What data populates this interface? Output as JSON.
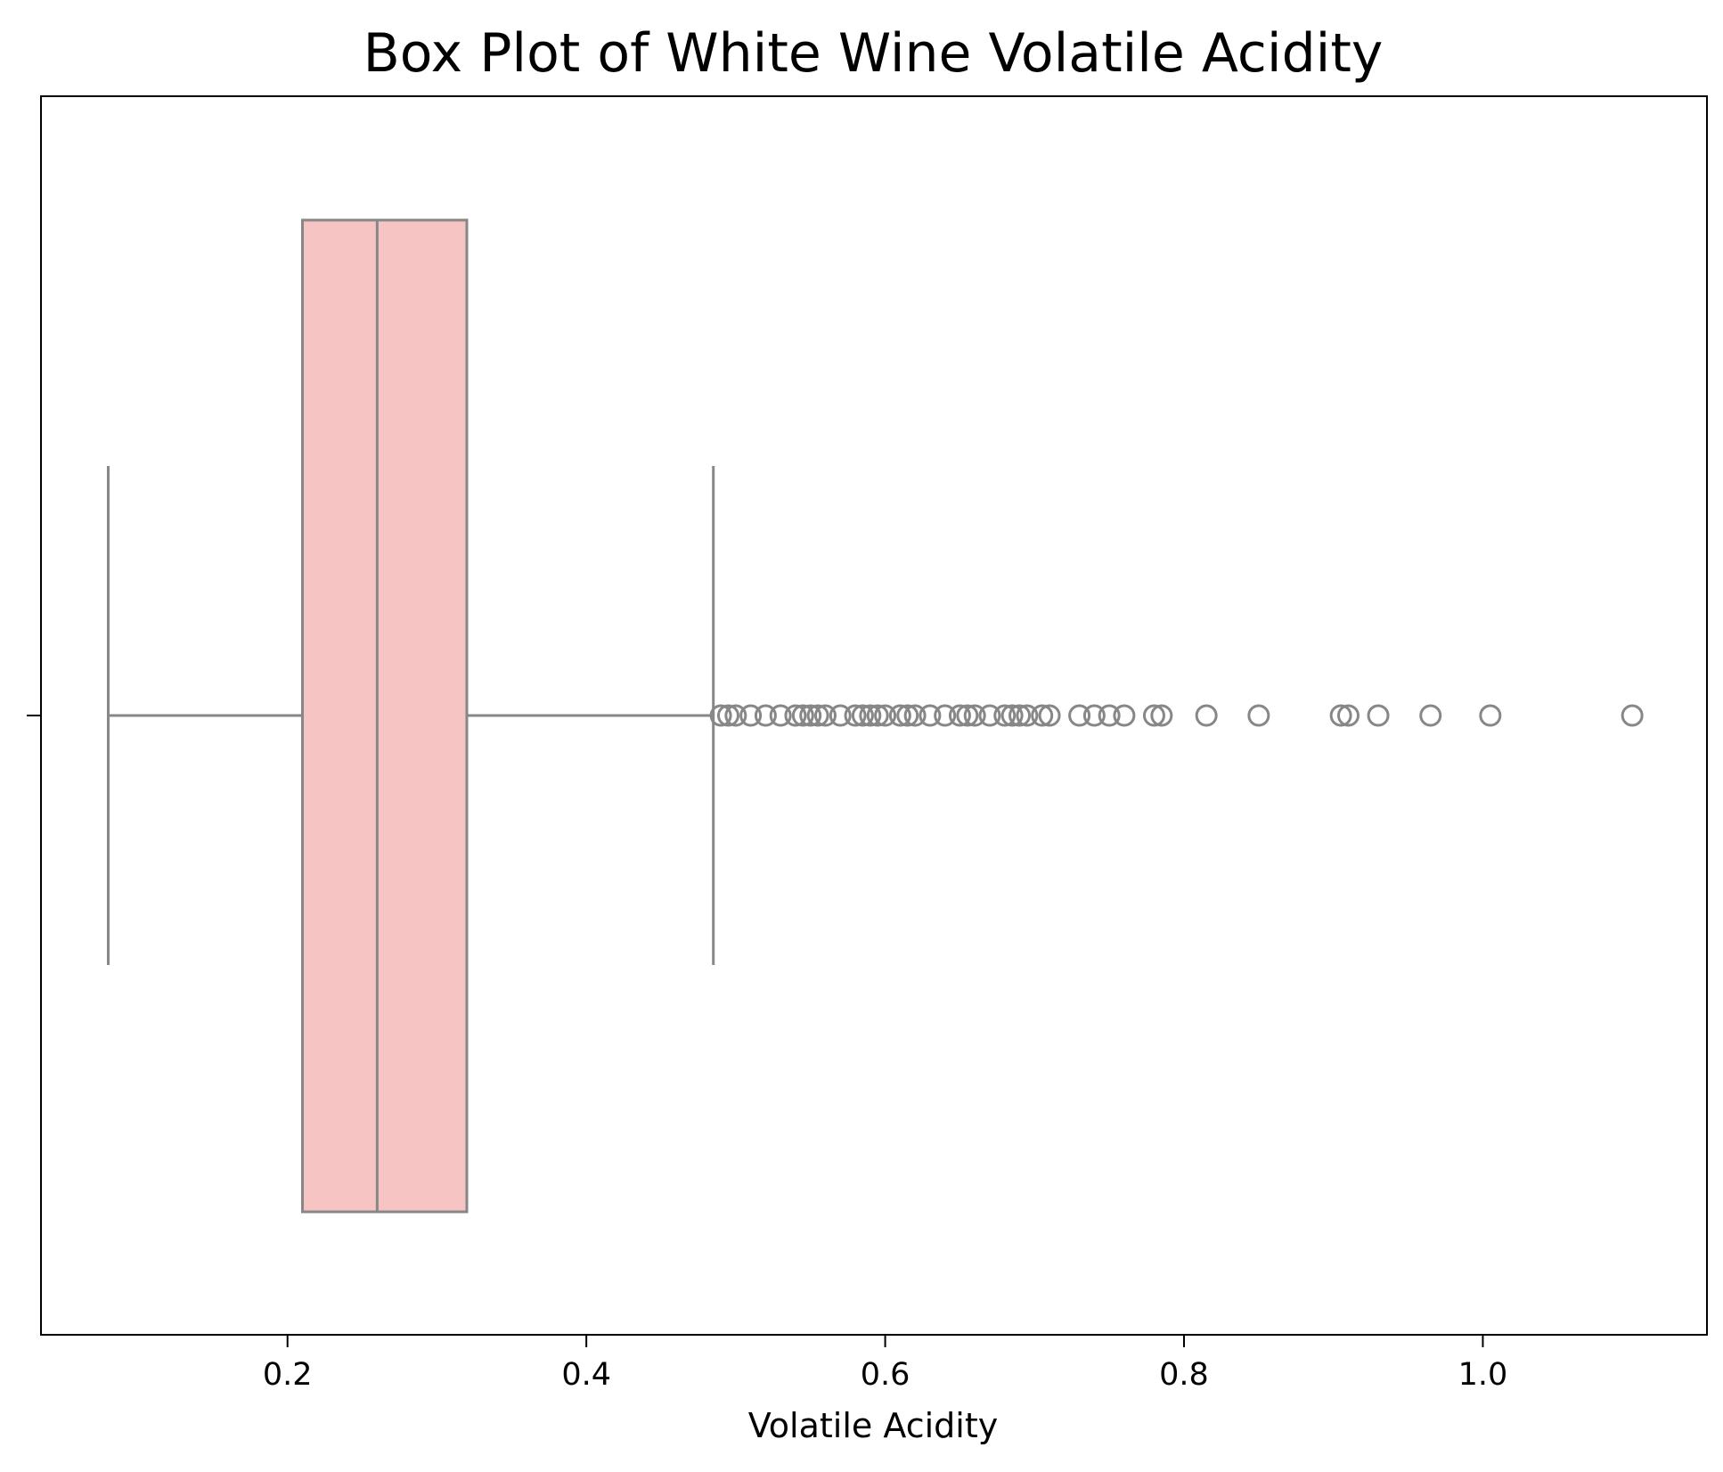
{
  "chart_data": {
    "type": "box",
    "title": "Box Plot of White Wine Volatile Acidity",
    "xlabel": "Volatile Acidity",
    "ylabel": "",
    "xlim": [
      0.035,
      1.15
    ],
    "xticks": [
      0.2,
      0.4,
      0.6,
      0.8,
      1.0
    ],
    "xtick_labels": [
      "0.2",
      "0.4",
      "0.6",
      "0.8",
      "1.0"
    ],
    "orientation": "horizontal",
    "box": {
      "whisker_low": 0.08,
      "q1": 0.21,
      "median": 0.26,
      "q3": 0.32,
      "whisker_high": 0.485
    },
    "outliers": [
      0.49,
      0.495,
      0.5,
      0.51,
      0.52,
      0.53,
      0.54,
      0.545,
      0.55,
      0.555,
      0.56,
      0.57,
      0.58,
      0.585,
      0.59,
      0.595,
      0.6,
      0.61,
      0.615,
      0.62,
      0.63,
      0.64,
      0.65,
      0.655,
      0.66,
      0.67,
      0.68,
      0.685,
      0.69,
      0.695,
      0.705,
      0.71,
      0.73,
      0.74,
      0.75,
      0.76,
      0.78,
      0.785,
      0.815,
      0.85,
      0.905,
      0.91,
      0.93,
      0.965,
      1.005,
      1.1
    ],
    "colors": {
      "box_fill": "#f6c5c3",
      "line": "#878787",
      "frame": "#000000"
    },
    "grid": false,
    "legend": "none"
  }
}
